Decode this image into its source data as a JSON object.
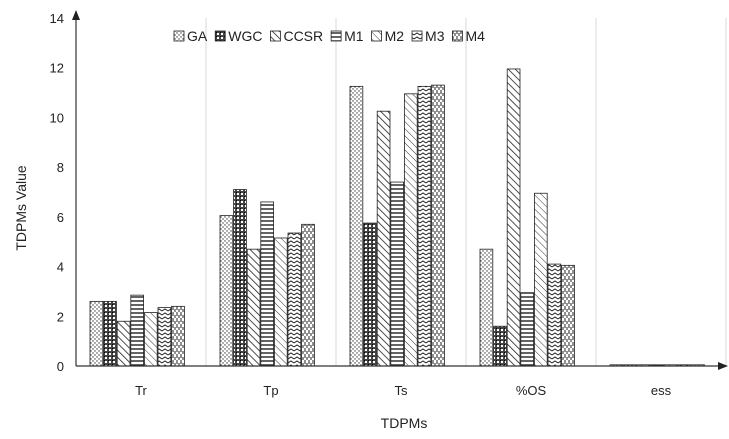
{
  "chart_data": {
    "type": "bar",
    "xlabel": "TDPMs",
    "ylabel": "TDPMs Value",
    "ylim": [
      0,
      14
    ],
    "yticks": [
      0,
      2,
      4,
      6,
      8,
      10,
      12,
      14
    ],
    "grid": "vertical category gridlines",
    "legend_position": "top",
    "categories": [
      "Tr",
      "Tp",
      "Ts",
      "%OS",
      "ess"
    ],
    "series": [
      {
        "name": "GA",
        "pattern": "dots",
        "values": [
          2.6,
          6.05,
          11.25,
          4.7,
          0.02
        ]
      },
      {
        "name": "WGC",
        "pattern": "crosshatch",
        "values": [
          2.6,
          7.1,
          5.75,
          1.6,
          0.02
        ]
      },
      {
        "name": "CCSR",
        "pattern": "diagonal",
        "values": [
          1.8,
          4.7,
          10.25,
          11.95,
          0.02
        ]
      },
      {
        "name": "M1",
        "pattern": "horizontal",
        "values": [
          2.85,
          6.6,
          7.4,
          2.95,
          0.02
        ]
      },
      {
        "name": "M2",
        "pattern": "diagonal2",
        "values": [
          2.15,
          5.15,
          10.95,
          6.95,
          0.02
        ]
      },
      {
        "name": "M3",
        "pattern": "zigzag",
        "values": [
          2.35,
          5.35,
          11.25,
          4.1,
          0.02
        ]
      },
      {
        "name": "M4",
        "pattern": "dashvert",
        "values": [
          2.4,
          5.7,
          11.3,
          4.05,
          0.02
        ]
      }
    ]
  }
}
